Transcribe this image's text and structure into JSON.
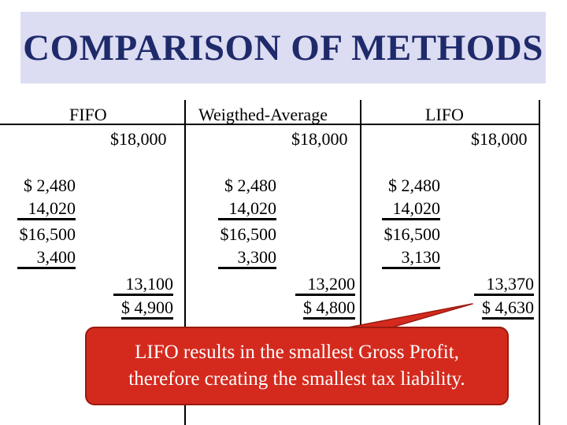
{
  "title": "COMPARISON OF METHODS",
  "columns": [
    {
      "name": "FIFO",
      "sales": "$18,000",
      "left_values": [
        "$ 2,480",
        "14,020",
        "$16,500",
        "3,400"
      ],
      "cogs": "13,100",
      "gross_profit": "$ 4,900"
    },
    {
      "name": "Weigthed-Average",
      "sales": "$18,000",
      "left_values": [
        "$ 2,480",
        "14,020",
        "$16,500",
        "3,300"
      ],
      "cogs": "13,200",
      "gross_profit": "$ 4,800"
    },
    {
      "name": "LIFO",
      "sales": "$18,000",
      "left_values": [
        "$ 2,480",
        "14,020",
        "$16,500",
        "3,130"
      ],
      "cogs": "13,370",
      "gross_profit": "$ 4,630"
    }
  ],
  "callout": {
    "line1": "LIFO results in the smallest Gross Profit,",
    "line2": "therefore creating the smallest tax liability."
  },
  "colors": {
    "title_bg": "#dcdcf2",
    "title_text": "#1f2a6b",
    "callout_bg": "#d42a1e"
  }
}
